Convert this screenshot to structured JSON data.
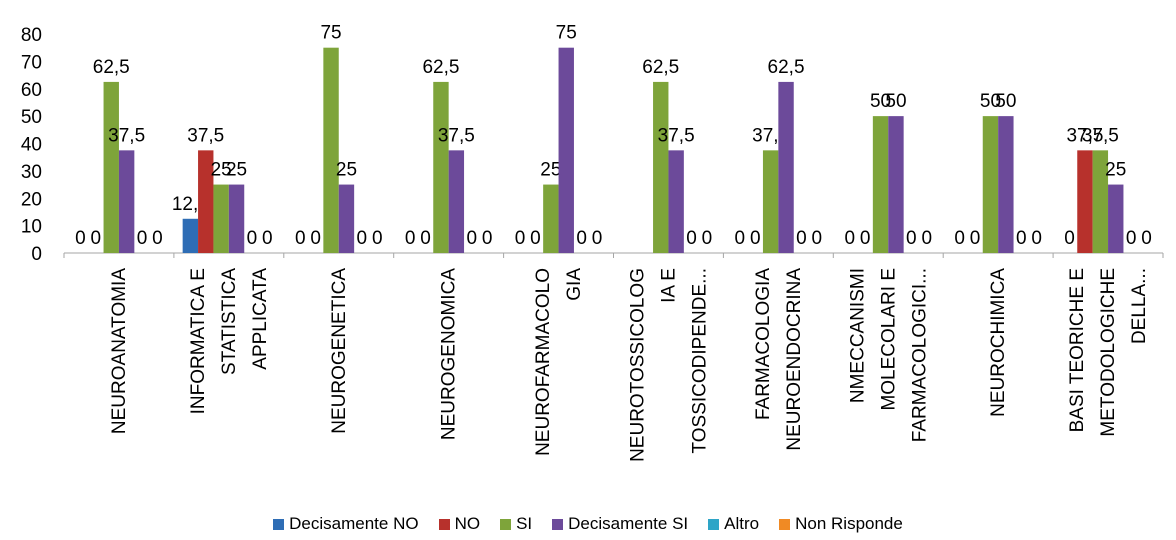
{
  "chart_data": {
    "type": "bar",
    "title": "",
    "xlabel": "",
    "ylabel": "",
    "ylim": [
      0,
      80
    ],
    "yticks": [
      0,
      10,
      20,
      30,
      40,
      50,
      60,
      70,
      80
    ],
    "grid": false,
    "legend_position": "bottom",
    "categories": [
      [
        "NEUROANATOMIA"
      ],
      [
        "INFORMATICA E",
        "STATISTICA",
        "APPLICATA"
      ],
      [
        "NEUROGENETICA"
      ],
      [
        "NEUROGENOMICA"
      ],
      [
        "NEUROFARMACOLO",
        "GIA"
      ],
      [
        "NEUROTOSSICOLOG",
        "IA E",
        "TOSSICODIPENDE..."
      ],
      [
        "FARMACOLOGIA",
        "NEUROENDOCRINA"
      ],
      [
        "NMECCANISMI",
        "MOLECOLARI E",
        "FARMACOLOGICI..."
      ],
      [
        "NEUROCHIMICA"
      ],
      [
        "BASI TEORICHE E",
        "METODOLOGICHE",
        "DELLA..."
      ]
    ],
    "series": [
      {
        "name": "Decisamente NO",
        "color": "#2E6DB5",
        "values": [
          0,
          12.5,
          0,
          0,
          0,
          0,
          0,
          0,
          0,
          0
        ]
      },
      {
        "name": "NO",
        "color": "#B7312C",
        "values": [
          0,
          37.5,
          0,
          0,
          0,
          0,
          0,
          0,
          0,
          37.5
        ]
      },
      {
        "name": "SI",
        "color": "#7EA43A",
        "values": [
          62.5,
          25,
          75,
          62.5,
          25,
          62.5,
          37.5,
          50,
          50,
          37.5
        ]
      },
      {
        "name": "Decisamente SI",
        "color": "#6C4A9A",
        "values": [
          37.5,
          25,
          25,
          37.5,
          75,
          37.5,
          62.5,
          50,
          50,
          25
        ]
      },
      {
        "name": "Altro",
        "color": "#2EA5C7",
        "values": [
          0,
          0,
          0,
          0,
          0,
          0,
          0,
          0,
          0,
          0
        ]
      },
      {
        "name": "Non Risponde",
        "color": "#F08A24",
        "values": [
          0,
          0,
          0,
          0,
          0,
          0,
          0,
          0,
          0,
          0
        ]
      }
    ],
    "data_labels": [
      [
        "0",
        "0",
        "62,5",
        "37,5",
        "0",
        "0"
      ],
      [
        "12,5",
        "37,5",
        "25",
        "25",
        "0",
        "0"
      ],
      [
        "0",
        "0",
        "75",
        "25",
        "0",
        "0"
      ],
      [
        "0",
        "0",
        "62,5",
        "37,5",
        "0",
        "0"
      ],
      [
        "0",
        "0",
        "25",
        "75",
        "0",
        "0"
      ],
      [
        "",
        "",
        "62,5",
        "37,5",
        "0",
        "0"
      ],
      [
        "0",
        "0",
        "37,5",
        "62,5",
        "0",
        "0"
      ],
      [
        "0",
        "0",
        "50",
        "50",
        "0",
        "0"
      ],
      [
        "0",
        "0",
        "50",
        "50",
        "0",
        "0"
      ],
      [
        "0",
        "37,5",
        "37,5",
        "25",
        "0",
        "0"
      ]
    ]
  }
}
